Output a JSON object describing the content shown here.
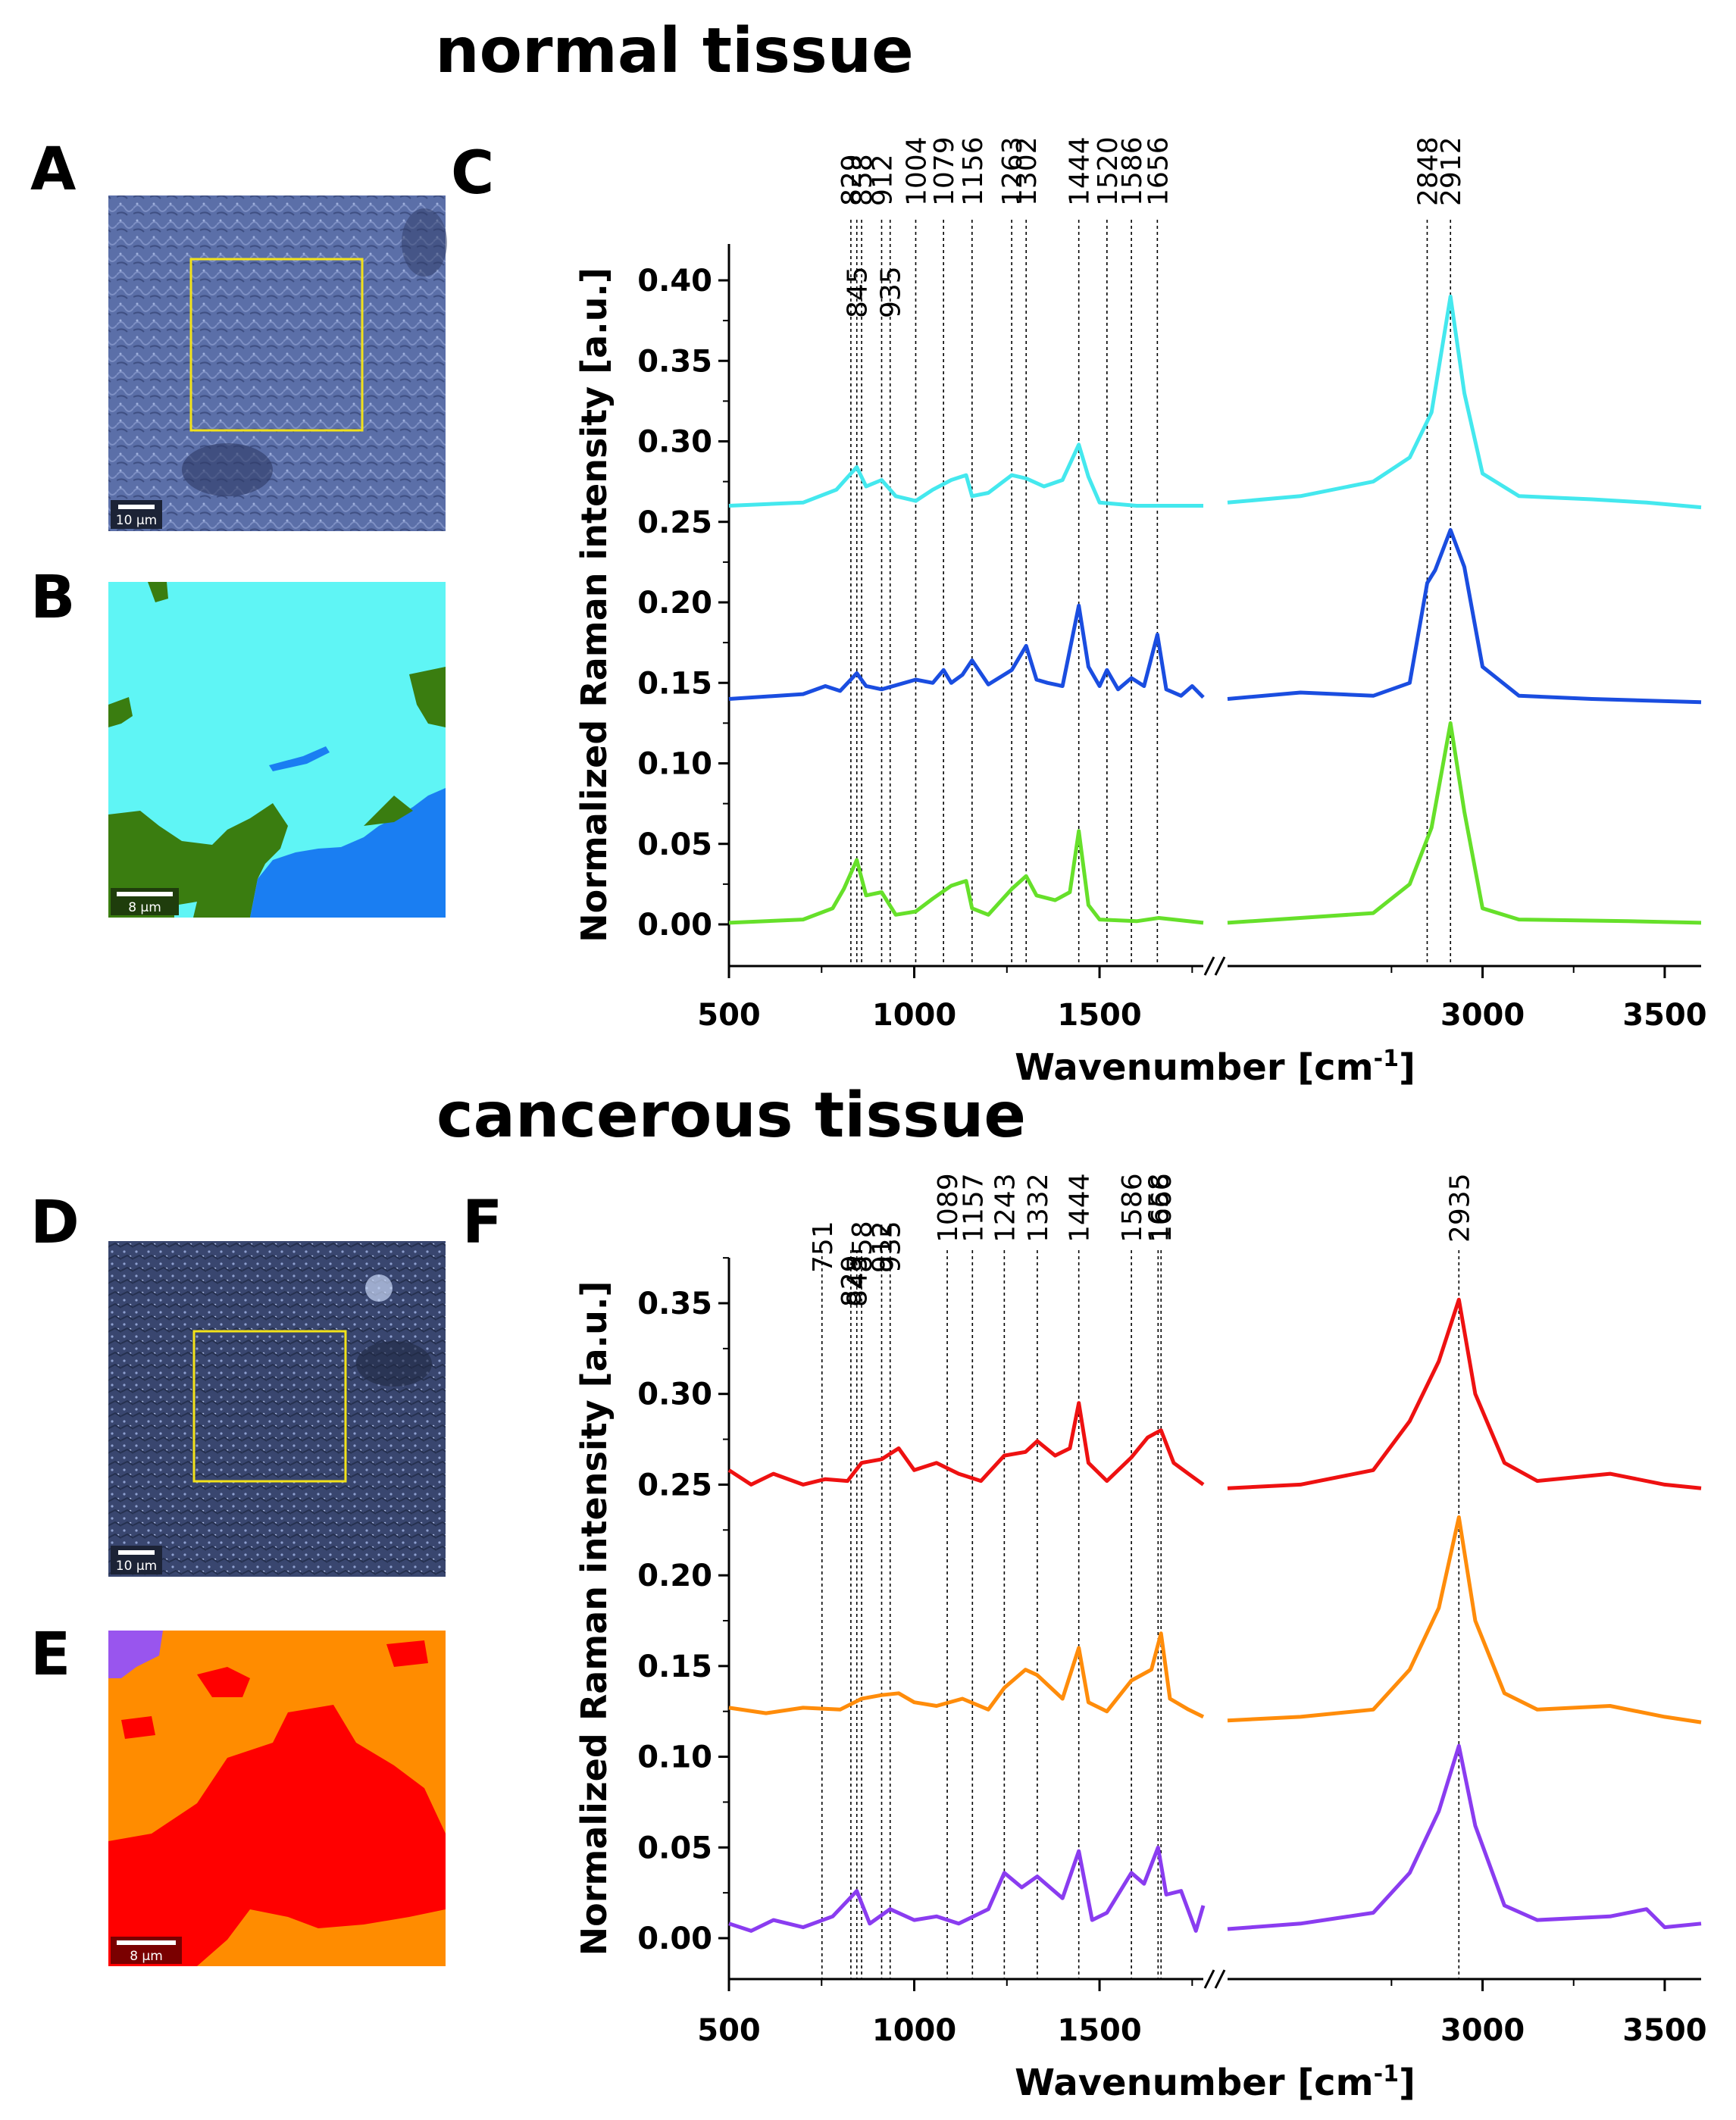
{
  "titles": {
    "normal": "normal tissue",
    "cancer": "cancerous tissue"
  },
  "panel_labels": {
    "a": "A",
    "b": "B",
    "c": "C",
    "d": "D",
    "e": "E",
    "f": "F"
  },
  "scalebars": {
    "a": "10 µm",
    "b": "8 µm",
    "d": "10 µm",
    "e": "8 µm"
  },
  "colors": {
    "normal_map": {
      "cyan": "#5ff5f5",
      "blue": "#1a7ef2",
      "green": "#3a7d10"
    },
    "cancer_map": {
      "red": "#ff0000",
      "orange": "#ff8c00",
      "purple": "#9955ee"
    },
    "normal_series": [
      "#44e8ee",
      "#1a4de0",
      "#66e02a"
    ],
    "cancer_series": [
      "#ee1111",
      "#ff8c0a",
      "#8a3cf0"
    ]
  },
  "chart_data": [
    {
      "type": "line",
      "panel": "C",
      "xlabel": "Wavenumber [cm",
      "xlabel_sup": "-1",
      "xlabel_end": "]",
      "ylabel": "Normalized Raman intensity [a.u.]",
      "ylim": [
        -0.025,
        0.425
      ],
      "y_ticks": [
        "0.00",
        "0.05",
        "0.10",
        "0.15",
        "0.20",
        "0.25",
        "0.30",
        "0.35",
        "0.40"
      ],
      "x_ticks": [
        "500",
        "1000",
        "1500",
        "3000",
        "3500"
      ],
      "x_break": true,
      "x_ranges": [
        [
          500,
          1780
        ],
        [
          2300,
          3600
        ]
      ],
      "peak_lines": [
        829,
        845,
        858,
        912,
        935,
        1004,
        1079,
        1156,
        1263,
        1302,
        1444,
        1520,
        1586,
        1656,
        2848,
        2912
      ],
      "peak_labels_top": [
        "829",
        "858",
        "912",
        "1004",
        "1079",
        "1156",
        "1263",
        "1302",
        "1444",
        "1520",
        "1586",
        "1656",
        "2848",
        "2912"
      ],
      "peak_labels_low": [
        "845",
        "935"
      ],
      "series": [
        {
          "baseline": 0.26,
          "points": [
            [
              500,
              0.26
            ],
            [
              700,
              0.262
            ],
            [
              790,
              0.27
            ],
            [
              829,
              0.28
            ],
            [
              845,
              0.284
            ],
            [
              870,
              0.272
            ],
            [
              912,
              0.276
            ],
            [
              950,
              0.266
            ],
            [
              1004,
              0.263
            ],
            [
              1050,
              0.27
            ],
            [
              1100,
              0.276
            ],
            [
              1140,
              0.279
            ],
            [
              1156,
              0.266
            ],
            [
              1200,
              0.268
            ],
            [
              1263,
              0.279
            ],
            [
              1302,
              0.277
            ],
            [
              1350,
              0.272
            ],
            [
              1400,
              0.276
            ],
            [
              1444,
              0.298
            ],
            [
              1470,
              0.278
            ],
            [
              1500,
              0.262
            ],
            [
              1600,
              0.26
            ],
            [
              1780,
              0.26
            ]
          ],
          "points_hi": [
            [
              2300,
              0.262
            ],
            [
              2500,
              0.266
            ],
            [
              2700,
              0.275
            ],
            [
              2800,
              0.29
            ],
            [
              2860,
              0.318
            ],
            [
              2912,
              0.39
            ],
            [
              2950,
              0.33
            ],
            [
              3000,
              0.28
            ],
            [
              3100,
              0.266
            ],
            [
              3300,
              0.264
            ],
            [
              3450,
              0.262
            ],
            [
              3600,
              0.259
            ]
          ]
        },
        {
          "baseline": 0.14,
          "points": [
            [
              500,
              0.14
            ],
            [
              700,
              0.143
            ],
            [
              760,
              0.148
            ],
            [
              800,
              0.145
            ],
            [
              845,
              0.156
            ],
            [
              870,
              0.148
            ],
            [
              912,
              0.146
            ],
            [
              1004,
              0.152
            ],
            [
              1050,
              0.15
            ],
            [
              1079,
              0.158
            ],
            [
              1100,
              0.15
            ],
            [
              1130,
              0.155
            ],
            [
              1156,
              0.164
            ],
            [
              1200,
              0.149
            ],
            [
              1263,
              0.158
            ],
            [
              1302,
              0.173
            ],
            [
              1330,
              0.152
            ],
            [
              1360,
              0.15
            ],
            [
              1400,
              0.148
            ],
            [
              1444,
              0.198
            ],
            [
              1470,
              0.16
            ],
            [
              1500,
              0.148
            ],
            [
              1520,
              0.158
            ],
            [
              1550,
              0.146
            ],
            [
              1586,
              0.153
            ],
            [
              1620,
              0.148
            ],
            [
              1656,
              0.18
            ],
            [
              1680,
              0.146
            ],
            [
              1720,
              0.142
            ],
            [
              1750,
              0.148
            ],
            [
              1780,
              0.141
            ]
          ],
          "points_hi": [
            [
              2300,
              0.14
            ],
            [
              2500,
              0.144
            ],
            [
              2700,
              0.142
            ],
            [
              2800,
              0.15
            ],
            [
              2848,
              0.212
            ],
            [
              2870,
              0.22
            ],
            [
              2912,
              0.245
            ],
            [
              2950,
              0.222
            ],
            [
              3000,
              0.16
            ],
            [
              3100,
              0.142
            ],
            [
              3300,
              0.14
            ],
            [
              3600,
              0.138
            ]
          ]
        },
        {
          "baseline": 0.0,
          "points": [
            [
              500,
              0.001
            ],
            [
              700,
              0.003
            ],
            [
              780,
              0.01
            ],
            [
              810,
              0.022
            ],
            [
              845,
              0.04
            ],
            [
              870,
              0.018
            ],
            [
              912,
              0.02
            ],
            [
              950,
              0.006
            ],
            [
              1004,
              0.008
            ],
            [
              1050,
              0.016
            ],
            [
              1100,
              0.024
            ],
            [
              1140,
              0.027
            ],
            [
              1156,
              0.01
            ],
            [
              1200,
              0.006
            ],
            [
              1263,
              0.022
            ],
            [
              1302,
              0.03
            ],
            [
              1330,
              0.018
            ],
            [
              1380,
              0.015
            ],
            [
              1420,
              0.02
            ],
            [
              1444,
              0.058
            ],
            [
              1470,
              0.012
            ],
            [
              1500,
              0.003
            ],
            [
              1600,
              0.002
            ],
            [
              1660,
              0.004
            ],
            [
              1780,
              0.001
            ]
          ],
          "points_hi": [
            [
              2300,
              0.001
            ],
            [
              2500,
              0.004
            ],
            [
              2700,
              0.007
            ],
            [
              2800,
              0.025
            ],
            [
              2860,
              0.06
            ],
            [
              2912,
              0.125
            ],
            [
              2950,
              0.07
            ],
            [
              3000,
              0.01
            ],
            [
              3100,
              0.003
            ],
            [
              3400,
              0.002
            ],
            [
              3600,
              0.001
            ]
          ]
        }
      ]
    },
    {
      "type": "line",
      "panel": "F",
      "xlabel": "Wavenumber [cm",
      "xlabel_sup": "-1",
      "xlabel_end": "]",
      "ylabel": "Normalized Raman intensity [a.u.]",
      "ylim": [
        -0.025,
        0.375
      ],
      "y_ticks": [
        "0.00",
        "0.05",
        "0.10",
        "0.15",
        "0.20",
        "0.25",
        "0.30",
        "0.35"
      ],
      "x_ticks": [
        "500",
        "1000",
        "1500",
        "3000",
        "3500"
      ],
      "x_break": true,
      "x_ranges": [
        [
          500,
          1780
        ],
        [
          2300,
          3600
        ]
      ],
      "peak_lines": [
        751,
        829,
        845,
        858,
        912,
        935,
        1089,
        1157,
        1243,
        1332,
        1444,
        1586,
        1658,
        1666,
        2935
      ],
      "peak_labels_high": [
        "1089",
        "1157",
        "1243",
        "1332",
        "1444",
        "1586",
        "1658",
        "1666",
        "2935"
      ],
      "peak_labels_mid": [
        "751",
        "858",
        "912",
        "935"
      ],
      "peak_labels_low": [
        "829",
        "845"
      ],
      "series": [
        {
          "baseline": 0.25,
          "points": [
            [
              500,
              0.258
            ],
            [
              560,
              0.25
            ],
            [
              620,
              0.256
            ],
            [
              700,
              0.25
            ],
            [
              760,
              0.253
            ],
            [
              820,
              0.252
            ],
            [
              858,
              0.262
            ],
            [
              912,
              0.264
            ],
            [
              958,
              0.27
            ],
            [
              1000,
              0.258
            ],
            [
              1060,
              0.262
            ],
            [
              1120,
              0.256
            ],
            [
              1180,
              0.252
            ],
            [
              1243,
              0.266
            ],
            [
              1300,
              0.268
            ],
            [
              1332,
              0.274
            ],
            [
              1380,
              0.266
            ],
            [
              1420,
              0.27
            ],
            [
              1444,
              0.295
            ],
            [
              1470,
              0.262
            ],
            [
              1520,
              0.252
            ],
            [
              1586,
              0.265
            ],
            [
              1630,
              0.276
            ],
            [
              1666,
              0.28
            ],
            [
              1700,
              0.262
            ],
            [
              1740,
              0.256
            ],
            [
              1780,
              0.25
            ]
          ],
          "points_hi": [
            [
              2300,
              0.248
            ],
            [
              2500,
              0.25
            ],
            [
              2700,
              0.258
            ],
            [
              2800,
              0.285
            ],
            [
              2880,
              0.318
            ],
            [
              2935,
              0.352
            ],
            [
              2980,
              0.3
            ],
            [
              3060,
              0.262
            ],
            [
              3150,
              0.252
            ],
            [
              3350,
              0.256
            ],
            [
              3500,
              0.25
            ],
            [
              3600,
              0.248
            ]
          ]
        },
        {
          "baseline": 0.125,
          "points": [
            [
              500,
              0.127
            ],
            [
              600,
              0.124
            ],
            [
              700,
              0.127
            ],
            [
              800,
              0.126
            ],
            [
              858,
              0.132
            ],
            [
              912,
              0.134
            ],
            [
              958,
              0.135
            ],
            [
              1000,
              0.13
            ],
            [
              1060,
              0.128
            ],
            [
              1130,
              0.132
            ],
            [
              1200,
              0.126
            ],
            [
              1243,
              0.138
            ],
            [
              1300,
              0.148
            ],
            [
              1332,
              0.145
            ],
            [
              1400,
              0.132
            ],
            [
              1444,
              0.16
            ],
            [
              1470,
              0.13
            ],
            [
              1520,
              0.125
            ],
            [
              1586,
              0.142
            ],
            [
              1640,
              0.148
            ],
            [
              1666,
              0.168
            ],
            [
              1690,
              0.132
            ],
            [
              1740,
              0.126
            ],
            [
              1780,
              0.122
            ]
          ],
          "points_hi": [
            [
              2300,
              0.12
            ],
            [
              2500,
              0.122
            ],
            [
              2700,
              0.126
            ],
            [
              2800,
              0.148
            ],
            [
              2880,
              0.182
            ],
            [
              2935,
              0.232
            ],
            [
              2980,
              0.175
            ],
            [
              3060,
              0.135
            ],
            [
              3150,
              0.126
            ],
            [
              3350,
              0.128
            ],
            [
              3500,
              0.122
            ],
            [
              3600,
              0.119
            ]
          ]
        },
        {
          "baseline": 0.0,
          "points": [
            [
              500,
              0.008
            ],
            [
              560,
              0.004
            ],
            [
              620,
              0.01
            ],
            [
              700,
              0.006
            ],
            [
              780,
              0.012
            ],
            [
              845,
              0.026
            ],
            [
              880,
              0.008
            ],
            [
              935,
              0.016
            ],
            [
              1000,
              0.01
            ],
            [
              1060,
              0.012
            ],
            [
              1120,
              0.008
            ],
            [
              1200,
              0.016
            ],
            [
              1243,
              0.036
            ],
            [
              1290,
              0.028
            ],
            [
              1332,
              0.034
            ],
            [
              1400,
              0.022
            ],
            [
              1444,
              0.048
            ],
            [
              1480,
              0.01
            ],
            [
              1520,
              0.014
            ],
            [
              1586,
              0.036
            ],
            [
              1620,
              0.03
            ],
            [
              1658,
              0.05
            ],
            [
              1680,
              0.024
            ],
            [
              1720,
              0.026
            ],
            [
              1760,
              0.004
            ],
            [
              1780,
              0.018
            ]
          ],
          "points_hi": [
            [
              2300,
              0.005
            ],
            [
              2500,
              0.008
            ],
            [
              2700,
              0.014
            ],
            [
              2800,
              0.036
            ],
            [
              2880,
              0.07
            ],
            [
              2935,
              0.106
            ],
            [
              2980,
              0.062
            ],
            [
              3060,
              0.018
            ],
            [
              3150,
              0.01
            ],
            [
              3350,
              0.012
            ],
            [
              3450,
              0.016
            ],
            [
              3500,
              0.006
            ],
            [
              3600,
              0.008
            ]
          ]
        }
      ]
    }
  ]
}
